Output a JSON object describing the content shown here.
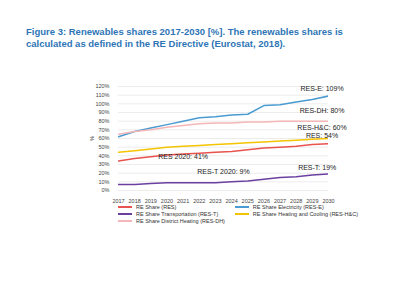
{
  "chart_data": {
    "type": "line",
    "title": "Figure 3: Renewables shares 2017-2030 [%]. The renewables shares is calculated as defined in the RE Directive (Eurostat, 2018).",
    "y_label": "%",
    "x": [
      2017,
      2018,
      2019,
      2020,
      2021,
      2022,
      2023,
      2024,
      2025,
      2026,
      2027,
      2028,
      2029,
      2030
    ],
    "xlim": [
      2017,
      2030
    ],
    "xticks": [
      2017,
      2018,
      2019,
      2020,
      2021,
      2022,
      2023,
      2024,
      2025,
      2026,
      2027,
      2028,
      2029,
      2030
    ],
    "ylim": [
      0,
      120
    ],
    "yticks": [
      {
        "value": 0,
        "label": "0%"
      },
      {
        "value": 10,
        "label": "10%"
      },
      {
        "value": 20,
        "label": "20%"
      },
      {
        "value": 30,
        "label": "30%"
      },
      {
        "value": 40,
        "label": "40%"
      },
      {
        "value": 50,
        "label": "50%"
      },
      {
        "value": 60,
        "label": "60%"
      },
      {
        "value": 70,
        "label": "70%"
      },
      {
        "value": 80,
        "label": "80%"
      },
      {
        "value": 90,
        "label": "90%"
      },
      {
        "value": 100,
        "label": "100%"
      },
      {
        "value": 110,
        "label": "110%"
      },
      {
        "value": 120,
        "label": "120%"
      }
    ],
    "grid": true,
    "legend": "bottom",
    "series": [
      {
        "name": "RE Share (RES)",
        "color": "#e8534f",
        "values": [
          34,
          37,
          39,
          41,
          42,
          43,
          44,
          45,
          47,
          49,
          50,
          51,
          53,
          54
        ]
      },
      {
        "name": "RE Share Electricity (RES-E)",
        "color": "#4a9bd1",
        "values": [
          62,
          68,
          72,
          76,
          80,
          84,
          85,
          87,
          88,
          98,
          99,
          102,
          105,
          109
        ]
      },
      {
        "name": "RE Share Transportation (RES-T)",
        "color": "#6b3fa0",
        "values": [
          7,
          7,
          8,
          9,
          9,
          9,
          9,
          10,
          11,
          13,
          15,
          16,
          18,
          19
        ]
      },
      {
        "name": "RE Share Heating and Cooling (RES-H&C)",
        "color": "#f5c400",
        "values": [
          44,
          46,
          48,
          50,
          51,
          52,
          53,
          54,
          55,
          56,
          57,
          58,
          59,
          60
        ]
      },
      {
        "name": "RE Share District Heating (RES-DH)",
        "color": "#f4b6b6",
        "values": [
          65,
          68,
          70,
          73,
          75,
          77,
          78,
          78,
          79,
          79,
          80,
          80,
          80,
          80
        ]
      }
    ],
    "annotations": [
      {
        "text": "RES-E: 109%",
        "x": 2029.6,
        "y": 117
      },
      {
        "text": "RES-DH: 80%",
        "x": 2029.6,
        "y": 92
      },
      {
        "text": "RES-H&C: 60%",
        "x": 2029.6,
        "y": 72
      },
      {
        "text": "RES: 54%",
        "x": 2029.6,
        "y": 63
      },
      {
        "text": "RES 2020: 41%",
        "x": 2021,
        "y": 39
      },
      {
        "text": "RES-T 2020: 9%",
        "x": 2023.5,
        "y": 22
      },
      {
        "text": "RES-T: 19%",
        "x": 2029.3,
        "y": 26
      }
    ]
  }
}
